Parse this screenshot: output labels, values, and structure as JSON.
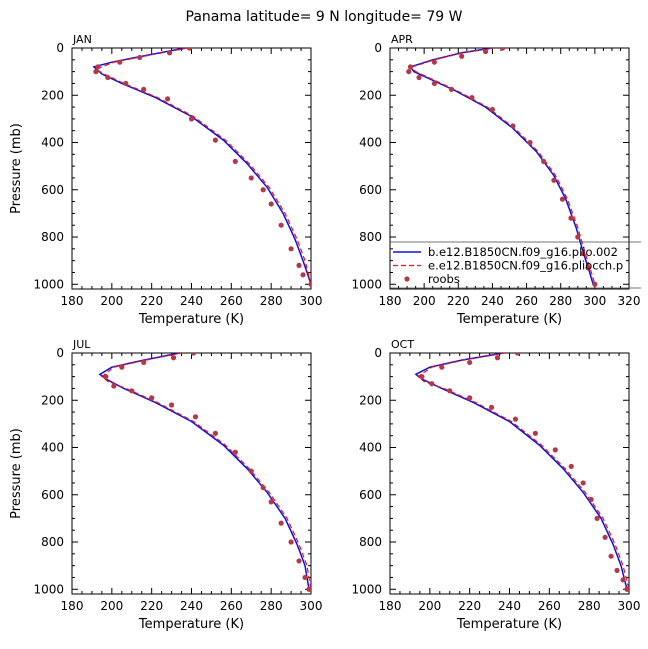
{
  "title": "Panama   latitude= 9 N longitude= 79 W",
  "colors": {
    "model1": "#1010dd",
    "model2": "#ee1111",
    "obs": "#b03a48"
  },
  "legend": [
    {
      "label": "b.e12.B1850CN.f09_g16.plio.002",
      "style": "line"
    },
    {
      "label": "e.e12.B1850CN.f09_g16.pliocch.p",
      "style": "dash"
    },
    {
      "label": "roobs",
      "style": "dot"
    }
  ],
  "chart_data": [
    {
      "type": "line",
      "month": "JAN",
      "xlabel": "Temperature (K)",
      "ylabel": "Pressure (mb)",
      "xlim": [
        180,
        300
      ],
      "ylim": [
        0,
        1020
      ],
      "xticks": [
        "180",
        "200",
        "220",
        "240",
        "260",
        "280",
        "300"
      ],
      "yticks": [
        "0",
        "200",
        "400",
        "600",
        "800",
        "1000"
      ],
      "series": [
        {
          "name": "b.e12.B1850CN.f09_g16.plio.002",
          "style": "solid",
          "x": [
            237,
            218,
            200,
            191,
            195,
            205,
            222,
            240,
            256,
            268,
            278,
            286,
            292,
            296,
            300
          ],
          "y": [
            0,
            30,
            60,
            80,
            110,
            150,
            210,
            290,
            390,
            490,
            590,
            700,
            810,
            900,
            1000
          ]
        },
        {
          "name": "e.e12.B1850CN.f09_g16.pliocch.p",
          "style": "dash",
          "x": [
            238,
            219,
            201,
            192,
            196,
            206,
            223,
            241,
            257,
            269,
            279,
            287,
            293,
            297,
            300
          ],
          "y": [
            0,
            30,
            60,
            90,
            110,
            150,
            210,
            290,
            390,
            490,
            590,
            700,
            810,
            900,
            1000
          ]
        },
        {
          "name": "roobs",
          "style": "dot",
          "x": [
            239,
            229,
            214,
            204,
            193,
            192,
            198,
            207,
            216,
            228,
            240,
            252,
            262,
            270,
            276,
            280,
            285,
            290,
            294,
            296,
            300
          ],
          "y": [
            0,
            20,
            40,
            60,
            80,
            100,
            125,
            150,
            175,
            215,
            300,
            390,
            480,
            550,
            600,
            660,
            750,
            850,
            920,
            960,
            1000
          ]
        }
      ]
    },
    {
      "type": "line",
      "month": "APR",
      "xlabel": "Temperature (K)",
      "ylabel": "",
      "xlim": [
        180,
        320
      ],
      "ylim": [
        0,
        1020
      ],
      "xticks": [
        "180",
        "200",
        "220",
        "240",
        "260",
        "280",
        "300",
        "320"
      ],
      "yticks": [
        "0",
        "200",
        "400",
        "600",
        "800",
        "1000"
      ],
      "series": [
        {
          "name": "b.e12.B1850CN.f09_g16.plio.002",
          "style": "solid",
          "x": [
            240,
            222,
            205,
            192,
            194,
            203,
            218,
            236,
            252,
            266,
            276,
            283,
            289,
            293,
            297,
            299
          ],
          "y": [
            0,
            20,
            50,
            80,
            100,
            130,
            180,
            250,
            340,
            440,
            540,
            640,
            760,
            860,
            950,
            1000
          ]
        },
        {
          "name": "e.e12.B1850CN.f09_g16.pliocch.p",
          "style": "dash",
          "x": [
            241,
            223,
            206,
            193,
            195,
            204,
            219,
            237,
            253,
            267,
            277,
            284,
            290,
            294,
            298,
            300
          ],
          "y": [
            0,
            20,
            50,
            80,
            100,
            130,
            180,
            250,
            340,
            440,
            540,
            640,
            760,
            860,
            950,
            1000
          ]
        },
        {
          "name": "roobs",
          "style": "dot",
          "x": [
            246,
            236,
            222,
            206,
            192,
            191,
            197,
            206,
            216,
            228,
            240,
            252,
            262,
            270,
            276,
            281,
            286,
            290,
            293,
            296,
            300
          ],
          "y": [
            0,
            15,
            35,
            60,
            80,
            100,
            125,
            150,
            175,
            210,
            260,
            330,
            400,
            480,
            560,
            640,
            720,
            800,
            870,
            930,
            1000
          ]
        }
      ]
    },
    {
      "type": "line",
      "month": "JUL",
      "xlabel": "Temperature (K)",
      "ylabel": "Pressure (mb)",
      "xlim": [
        180,
        300
      ],
      "ylim": [
        0,
        1020
      ],
      "xticks": [
        "180",
        "200",
        "220",
        "240",
        "260",
        "280",
        "300"
      ],
      "yticks": [
        "0",
        "200",
        "400",
        "600",
        "800",
        "1000"
      ],
      "series": [
        {
          "name": "b.e12.B1850CN.f09_g16.plio.002",
          "style": "solid",
          "x": [
            234,
            216,
            200,
            194,
            197,
            206,
            222,
            240,
            256,
            268,
            278,
            287,
            293,
            297,
            299
          ],
          "y": [
            0,
            30,
            60,
            90,
            110,
            150,
            210,
            290,
            390,
            490,
            590,
            700,
            810,
            900,
            1000
          ]
        },
        {
          "name": "e.e12.B1850CN.f09_g16.pliocch.p",
          "style": "dash",
          "x": [
            235,
            217,
            201,
            195,
            198,
            207,
            223,
            241,
            257,
            269,
            279,
            288,
            294,
            298,
            300
          ],
          "y": [
            0,
            30,
            60,
            100,
            120,
            150,
            210,
            290,
            390,
            490,
            590,
            700,
            810,
            900,
            1000
          ]
        },
        {
          "name": "roobs",
          "style": "dot",
          "x": [
            241,
            231,
            216,
            205,
            197,
            201,
            210,
            220,
            230,
            242,
            252,
            262,
            270,
            276,
            280,
            285,
            290,
            294,
            297,
            299
          ],
          "y": [
            0,
            20,
            40,
            60,
            100,
            140,
            160,
            190,
            220,
            270,
            340,
            420,
            500,
            570,
            630,
            720,
            800,
            880,
            950,
            1000
          ]
        }
      ]
    },
    {
      "type": "line",
      "month": "OCT",
      "xlabel": "Temperature (K)",
      "ylabel": "",
      "xlim": [
        180,
        300
      ],
      "ylim": [
        0,
        1020
      ],
      "xticks": [
        "180",
        "200",
        "220",
        "240",
        "260",
        "280",
        "300"
      ],
      "yticks": [
        "0",
        "200",
        "400",
        "600",
        "800",
        "1000"
      ],
      "series": [
        {
          "name": "b.e12.B1850CN.f09_g16.plio.002",
          "style": "solid",
          "x": [
            237,
            216,
            200,
            193,
            196,
            206,
            222,
            240,
            255,
            267,
            277,
            286,
            292,
            296,
            299
          ],
          "y": [
            0,
            30,
            60,
            90,
            110,
            150,
            210,
            290,
            390,
            490,
            590,
            700,
            810,
            900,
            1000
          ]
        },
        {
          "name": "e.e12.B1850CN.f09_g16.pliocch.p",
          "style": "dash",
          "x": [
            238,
            217,
            201,
            194,
            197,
            207,
            223,
            241,
            256,
            268,
            278,
            287,
            293,
            297,
            300
          ],
          "y": [
            0,
            30,
            60,
            100,
            120,
            150,
            210,
            290,
            390,
            490,
            590,
            700,
            810,
            900,
            1000
          ]
        },
        {
          "name": "roobs",
          "style": "dot",
          "x": [
            244,
            234,
            220,
            206,
            196,
            201,
            210,
            220,
            231,
            243,
            253,
            263,
            271,
            277,
            281,
            284,
            288,
            291,
            294,
            297,
            299
          ],
          "y": [
            0,
            20,
            40,
            60,
            100,
            130,
            160,
            190,
            230,
            280,
            340,
            410,
            480,
            550,
            620,
            700,
            780,
            860,
            920,
            960,
            1000
          ]
        }
      ]
    }
  ]
}
